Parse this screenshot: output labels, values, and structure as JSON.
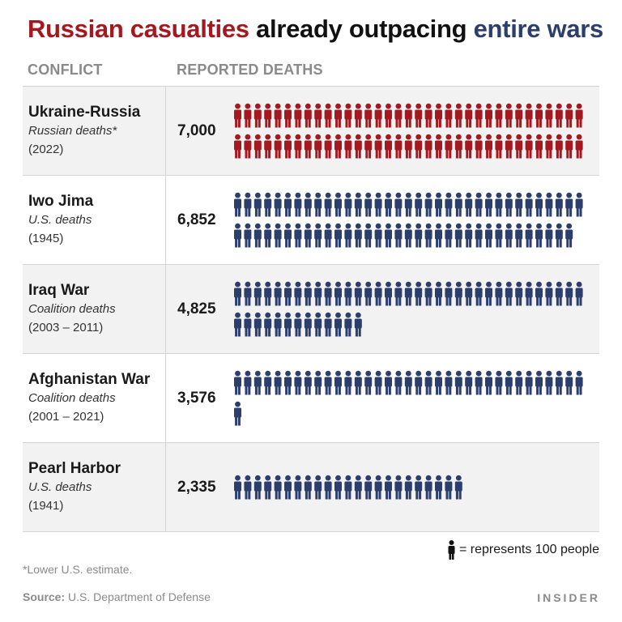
{
  "title": {
    "part1": "Russian casualties",
    "part2": "already outpacing",
    "part3": "entire wars"
  },
  "colors": {
    "red": "#a3191f",
    "blue": "#2c3e6b",
    "gray_text": "#8a8a8a",
    "shaded_row": "#f2f2f2"
  },
  "columns": {
    "conflict": "CONFLICT",
    "deaths": "REPORTED DEATHS"
  },
  "chart_data": {
    "type": "pictograph",
    "unit_per_icon": 100,
    "rows": [
      {
        "conflict": "Ukraine-Russia",
        "subtitle": "Russian deaths*",
        "years": "(2022)",
        "deaths": 7000,
        "display": "7,000",
        "color": "red"
      },
      {
        "conflict": "Iwo Jima",
        "subtitle": "U.S. deaths",
        "years": "(1945)",
        "deaths": 6852,
        "display": "6,852",
        "color": "blue"
      },
      {
        "conflict": "Iraq War",
        "subtitle": "Coalition deaths",
        "years": "(2003 – 2011)",
        "deaths": 4825,
        "display": "4,825",
        "color": "blue"
      },
      {
        "conflict": "Afghanistan War",
        "subtitle": "Coalition deaths",
        "years": "(2001 – 2021)",
        "deaths": 3576,
        "display": "3,576",
        "color": "blue"
      },
      {
        "conflict": "Pearl Harbor",
        "subtitle": "U.S. deaths",
        "years": "(1941)",
        "deaths": 2335,
        "display": "2,335",
        "color": "blue"
      }
    ]
  },
  "legend": {
    "text": "= represents 100 people",
    "icon": "person-icon"
  },
  "footnote": "*Lower U.S. estimate.",
  "source": {
    "label": "Source:",
    "text": "U.S. Department of Defense"
  },
  "brand": "INSIDER"
}
